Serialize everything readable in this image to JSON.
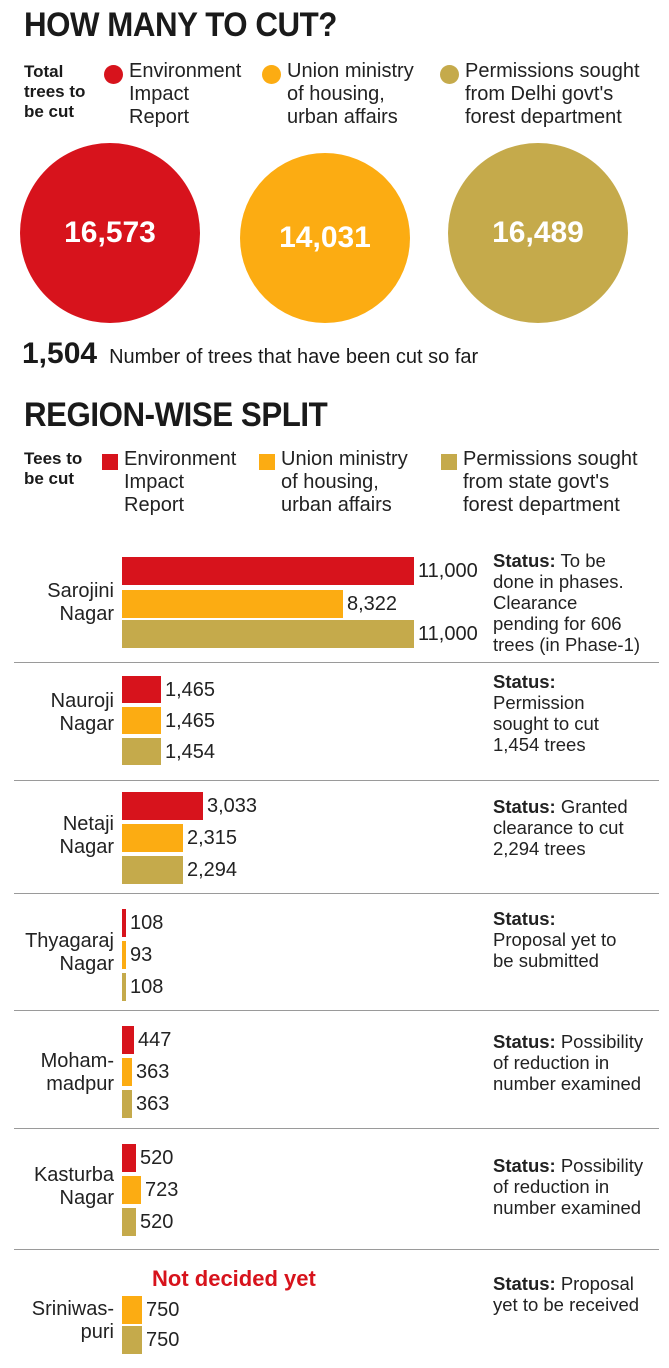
{
  "colors": {
    "eir": "#d7131c",
    "ministry": "#fcac12",
    "forest": "#c5aa4b"
  },
  "title": "HOW MANY TO CUT?",
  "total_label": "Total\ntrees to\nbe cut",
  "legend_top": [
    {
      "label": "Environment\nImpact\nReport",
      "color": "#d7131c"
    },
    {
      "label": "Union ministry\nof housing,\nurban affairs",
      "color": "#fcac12"
    },
    {
      "label": "Permissions sought\nfrom Delhi govt's\nforest department",
      "color": "#c5aa4b"
    }
  ],
  "totals": [
    "16,573",
    "14,031",
    "16,489"
  ],
  "cut_so_far": {
    "value": "1,504",
    "label": "Number of trees that have been cut so far"
  },
  "region_title": "REGION-WISE SPLIT",
  "region_label": "Tees to\nbe cut",
  "legend_region": [
    {
      "label": "Environment\nImpact\nReport",
      "color": "#d7131c"
    },
    {
      "label": "Union ministry\nof housing,\nurban affairs",
      "color": "#fcac12"
    },
    {
      "label": "Permissions sought\nfrom state govt's\nforest department",
      "color": "#c5aa4b"
    }
  ],
  "status_prefix": "Status:",
  "chart_data": {
    "type": "bar",
    "orientation": "horizontal",
    "title": "REGION-WISE SPLIT",
    "categories": [
      "Sarojini Nagar",
      "Nauroji Nagar",
      "Netaji Nagar",
      "Thyagaraj Nagar",
      "Mohammadpur",
      "Kasturba Nagar",
      "Sriniwaspuri"
    ],
    "series": [
      {
        "name": "Environment Impact Report",
        "values": [
          11000,
          1465,
          3033,
          108,
          447,
          520,
          null
        ]
      },
      {
        "name": "Union ministry of housing, urban affairs",
        "values": [
          8322,
          1465,
          2315,
          93,
          363,
          723,
          750
        ]
      },
      {
        "name": "Permissions sought from state govt's forest department",
        "values": [
          11000,
          1454,
          2294,
          108,
          363,
          520,
          750
        ]
      }
    ]
  },
  "regions": [
    {
      "name": "Sarojini\nNagar",
      "labels": [
        "11,000",
        "8,322",
        "11,000"
      ],
      "status": " To be\ndone in phases.\nClearance\npending for 606\ntrees (in Phase-1)"
    },
    {
      "name": "Nauroji\nNagar",
      "labels": [
        "1,465",
        "1,465",
        "1,454"
      ],
      "status": "\nPermission\nsought to cut\n1,454 trees"
    },
    {
      "name": "Netaji\nNagar",
      "labels": [
        "3,033",
        "2,315",
        "2,294"
      ],
      "status": " Granted\nclearance to cut\n2,294 trees"
    },
    {
      "name": "Thyagaraj\nNagar",
      "labels": [
        "108",
        "93",
        "108"
      ],
      "status": "\nProposal yet to\nbe submitted"
    },
    {
      "name": "Moham-\nmadpur",
      "labels": [
        "447",
        "363",
        "363"
      ],
      "status": " Possibility\nof reduction in\nnumber examined"
    },
    {
      "name": "Kasturba\nNagar",
      "labels": [
        "520",
        "723",
        "520"
      ],
      "status": " Possibility\nof reduction in\nnumber examined"
    },
    {
      "name": "Sriniwas-\npuri",
      "labels": [
        "",
        "750",
        "750"
      ],
      "status": " Proposal\nyet to be received",
      "note": "Not decided yet"
    }
  ]
}
